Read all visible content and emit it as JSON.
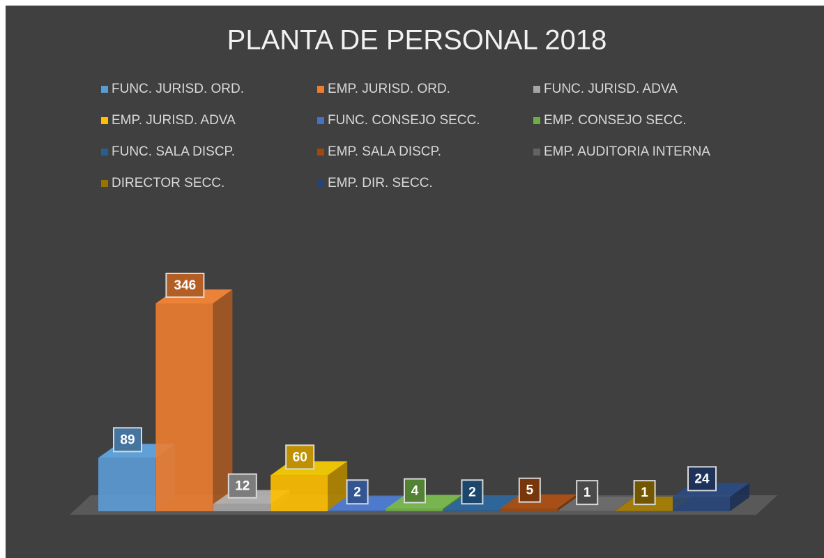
{
  "chart_data": {
    "type": "bar3d",
    "title": "PLANTA DE PERSONAL 2018",
    "series": [
      {
        "name": "FUNC. JURISD. ORD.",
        "color": "#5b9bd5",
        "values": [
          89
        ]
      },
      {
        "name": "EMP. JURISD. ORD.",
        "color": "#ed7d31",
        "values": [
          346
        ]
      },
      {
        "name": "FUNC. JURISD. ADVA",
        "color": "#a5a5a5",
        "values": [
          12
        ]
      },
      {
        "name": "EMP. JURISD. ADVA",
        "color": "#ffc000",
        "values": [
          60
        ]
      },
      {
        "name": "FUNC. CONSEJO SECC.",
        "color": "#4472c4",
        "values": [
          2
        ]
      },
      {
        "name": "EMP. CONSEJO SECC.",
        "color": "#70ad47",
        "values": [
          4
        ]
      },
      {
        "name": "FUNC. SALA DISCP.",
        "color": "#255e91",
        "values": [
          2
        ]
      },
      {
        "name": "EMP. SALA DISCP.",
        "color": "#9e480e",
        "values": [
          5
        ]
      },
      {
        "name": "EMP. AUDITORIA INTERNA",
        "color": "#636363",
        "values": [
          1
        ]
      },
      {
        "name": "DIRECTOR SECC.",
        "color": "#997300",
        "values": [
          1
        ]
      },
      {
        "name": "EMP. DIR. SECC.",
        "color": "#264478",
        "values": [
          24
        ]
      }
    ]
  }
}
